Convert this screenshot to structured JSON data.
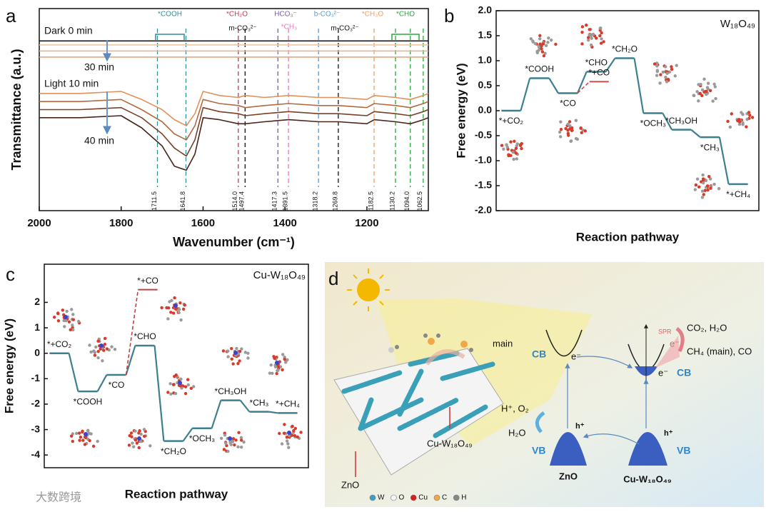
{
  "panel_labels": [
    "a",
    "b",
    "c",
    "d"
  ],
  "watermark": "大数跨境",
  "chart_data": [
    {
      "type": "spectra",
      "xlabel": "Wavenumber (cm⁻¹)",
      "ylabel": "Transmittance (a.u.)",
      "xlim": [
        2000,
        1050
      ],
      "xticks": [
        2000,
        1800,
        1600,
        1400,
        1200
      ],
      "ylim": [
        0,
        100
      ],
      "x": [
        2000,
        1900,
        1800,
        1750,
        1700,
        1670,
        1641,
        1620,
        1600,
        1560,
        1514,
        1497,
        1450,
        1391,
        1318,
        1269,
        1200,
        1182,
        1130,
        1094,
        1062,
        1050
      ],
      "series": [
        {
          "color": "#1a1a1a",
          "values": [
            84,
            84,
            84,
            84,
            84,
            84,
            84,
            84,
            84,
            84,
            84,
            84,
            84,
            84,
            84,
            84,
            84,
            84,
            84,
            84,
            84,
            84
          ]
        },
        {
          "color": "#f2c8a0",
          "values": [
            82,
            82,
            82,
            82,
            82,
            82,
            82,
            82,
            82,
            82,
            82,
            82,
            82,
            82,
            82,
            82,
            82,
            82,
            82,
            82,
            82,
            82
          ]
        },
        {
          "color": "#eab58c",
          "values": [
            79,
            79,
            79,
            79,
            79,
            79,
            79,
            79,
            79,
            79,
            79,
            79,
            79,
            79,
            79,
            79,
            79,
            79,
            79,
            79,
            79,
            79
          ]
        },
        {
          "color": "#e2a77e",
          "values": [
            76,
            76,
            76,
            76,
            76,
            76,
            76,
            76,
            76,
            76,
            76,
            76,
            76,
            76,
            76,
            76,
            76,
            76,
            76,
            76,
            76,
            76
          ]
        },
        {
          "color": "#e0925a",
          "values": [
            58,
            58,
            59,
            55,
            50,
            45,
            42,
            48,
            59,
            57,
            56,
            57,
            56,
            57,
            56,
            56,
            55,
            57,
            56,
            55,
            57,
            58
          ]
        },
        {
          "color": "#b46a40",
          "values": [
            54,
            54,
            55,
            50,
            44,
            38,
            35,
            42,
            55,
            53,
            52,
            51,
            52,
            53,
            52,
            52,
            51,
            53,
            52,
            51,
            53,
            54
          ]
        },
        {
          "color": "#7a4028",
          "values": [
            50,
            50,
            51,
            46,
            38,
            31,
            27,
            35,
            51,
            49,
            48,
            47,
            48,
            49,
            48,
            48,
            47,
            49,
            48,
            47,
            49,
            50
          ]
        },
        {
          "color": "#4a2418",
          "values": [
            46,
            46,
            47,
            41,
            32,
            22,
            20,
            28,
            46,
            45,
            43,
            43,
            44,
            45,
            44,
            44,
            43,
            45,
            44,
            43,
            45,
            46
          ]
        }
      ],
      "annotations": [
        "Dark 0 min",
        "30 min",
        "Light 10 min",
        "40 min"
      ],
      "markers": [
        {
          "value": 1711.5,
          "label": "1711.5",
          "color": "#2f8f9a"
        },
        {
          "value": 1641.8,
          "label": "1641.8",
          "color": "#2f8f9a"
        },
        {
          "value": 1514,
          "label": "1514.0",
          "color": "#c23b5a"
        },
        {
          "value": 1497.4,
          "label": "1497.4",
          "color": "#111111"
        },
        {
          "value": 1417.3,
          "label": "1417.3",
          "color": "#7b5cb8"
        },
        {
          "value": 1391.5,
          "label": "1391.5",
          "color": "#e27ab8"
        },
        {
          "value": 1318.2,
          "label": "1318.2",
          "color": "#5a9ad0"
        },
        {
          "value": 1269.8,
          "label": "1269.8",
          "color": "#111111"
        },
        {
          "value": 1182.5,
          "label": "1182.5",
          "color": "#f0a060"
        },
        {
          "value": 1130.2,
          "label": "1130.2",
          "color": "#2aa83a"
        },
        {
          "value": 1094,
          "label": "1094.0",
          "color": "#2aa83a"
        },
        {
          "value": 1062.5,
          "label": "1062.5",
          "color": "#2aa83a"
        }
      ],
      "species": [
        {
          "text": "*COOH",
          "color": "#2f8f9a"
        },
        {
          "text": "*CH₂O",
          "color": "#c23b5a"
        },
        {
          "text": "m-CO₃²⁻",
          "color": "#111111"
        },
        {
          "text": "HCO₃⁻",
          "color": "#7b5cb8"
        },
        {
          "text": "*CH₃",
          "color": "#e27ab8"
        },
        {
          "text": "b-CO₃²⁻",
          "color": "#5a9ad0"
        },
        {
          "text": "m-CO₃²⁻",
          "color": "#111111"
        },
        {
          "text": "*CH₃O",
          "color": "#f0a060"
        },
        {
          "text": "*CHO",
          "color": "#2aa83a"
        }
      ]
    },
    {
      "type": "energy",
      "title": "W₁₈O₄₉",
      "ylabel": "Free energy (eV)",
      "xlabel": "Reaction pathway",
      "ylim": [
        -2,
        2
      ],
      "yticks": [
        {
          "value": 2,
          "label": "2.0"
        },
        {
          "value": 1.5,
          "label": "1.5"
        },
        {
          "value": 1,
          "label": "1.0"
        },
        {
          "value": 0.5,
          "label": "0.5"
        },
        {
          "value": 0,
          "label": "0.0"
        },
        {
          "value": -0.5,
          "label": "-0.5"
        },
        {
          "value": -1,
          "label": "-1.0"
        },
        {
          "value": -1.5,
          "label": "-1.5"
        },
        {
          "value": -2,
          "label": "-2.0"
        }
      ],
      "categories": [
        "*+CO₂",
        "*COOH",
        "*CO",
        "*CHO",
        "*CH₂O",
        "*OCH₃",
        "*CH₃OH",
        "*CH₃",
        "*+CH₄"
      ],
      "values": [
        0,
        0.65,
        0.35,
        0.78,
        1.05,
        -0.05,
        -0.38,
        -0.53,
        -1.47
      ],
      "color": "#3d7f8f",
      "branch": {
        "label": "*+CO",
        "value": 0.58,
        "color": "#d04a4a"
      }
    },
    {
      "type": "energy",
      "title": "Cu-W₁₈O₄₉",
      "ylabel": "Free energy (eV)",
      "xlabel": "Reaction pathway",
      "ylim": [
        -4.5,
        3.5
      ],
      "yticks": [
        2,
        1,
        0,
        -1,
        -2,
        -3,
        -4
      ],
      "categories": [
        "*+CO₂",
        "*COOH",
        "*CO",
        "*CHO",
        "*CH₂O",
        "*OCH₃",
        "*CH₃OH",
        "*CH₃",
        "*+CH₄"
      ],
      "values": [
        0,
        -1.5,
        -0.85,
        0.3,
        -3.45,
        -2.95,
        -1.85,
        -2.3,
        -2.35
      ],
      "color": "#3d7f8f",
      "branch": {
        "label": "*+CO",
        "value": 2.5,
        "color": "#c04040"
      }
    }
  ],
  "diagram": {
    "main": "main",
    "zno_cb": "CB",
    "zno_e": "e⁻",
    "cuw_cb": "CB",
    "cuw_e": "e⁻",
    "spr": "SPR",
    "spr_e": "e⁻",
    "products1": "CO₂, H₂O",
    "products2": "CH₄ (main), CO",
    "oxid": "H⁺, O₂",
    "water": "H₂O",
    "zno_h": "h⁺",
    "zno_vb": "VB",
    "zno_name": "ZnO",
    "cuw_h": "h⁺",
    "cuw_vb": "VB",
    "cuw_name": "Cu-W₁₈O₄₉",
    "sub_zno": "ZnO",
    "sub_cuw": "Cu-W₁₈O₄₉",
    "legend": [
      "W",
      "O",
      "Cu",
      "C",
      "H"
    ]
  }
}
